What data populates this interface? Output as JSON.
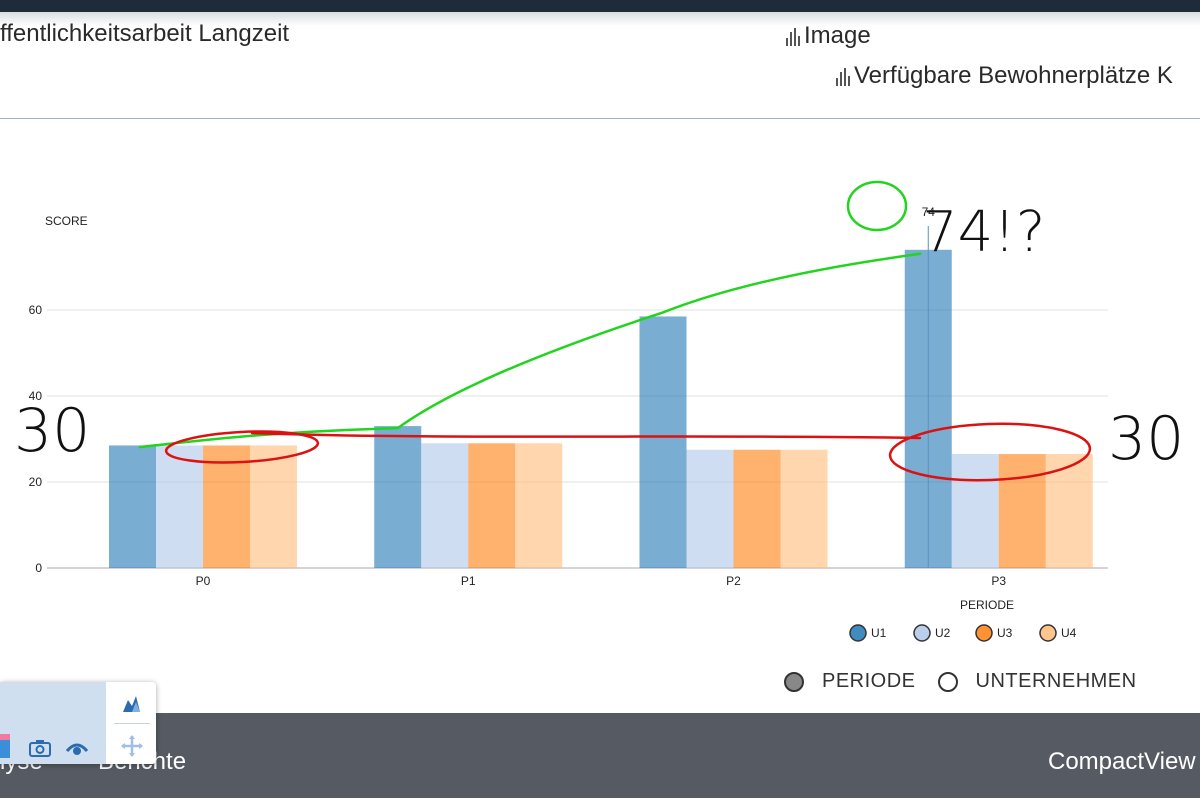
{
  "header": {
    "title": "ffentlichkeitsarbeit Langzeit",
    "links": [
      "Image",
      "Verfügbare Bewohnerplätze K"
    ]
  },
  "chart_data": {
    "type": "bar",
    "categories": [
      "P0",
      "P1",
      "P2",
      "P3"
    ],
    "series": [
      {
        "name": "U1",
        "color": "#1f77b4",
        "values": [
          28.5,
          33,
          58.5,
          74
        ]
      },
      {
        "name": "U2",
        "color": "#aec7e8",
        "values": [
          28.5,
          29,
          27.5,
          26.5
        ]
      },
      {
        "name": "U3",
        "color": "#ff7f0e",
        "values": [
          28.5,
          29,
          27.5,
          26.5
        ]
      },
      {
        "name": "U4",
        "color": "#ffbb78",
        "values": [
          28.5,
          29,
          27.5,
          26.5
        ]
      }
    ],
    "ylabel": "SCORE",
    "xlabel": "PERIODE",
    "yticks": [
      0,
      20,
      40,
      60
    ],
    "ylim": [
      0,
      80
    ],
    "grid": true,
    "legend": "bottom-right",
    "tooltip_value": "74"
  },
  "view_toggle": {
    "options": [
      "PERIODE",
      "UNTERNEHMEN"
    ],
    "selected": "PERIODE"
  },
  "annotations": {
    "left_note": "30",
    "right_note": "30",
    "peak_note": "74!?"
  },
  "footer": {
    "items": [
      "lyse",
      "Berichte",
      "CompactView"
    ]
  },
  "toolbox": {
    "icons": [
      "pink-tool-icon",
      "camera-icon",
      "eye-icon",
      "chart-mountain-icon",
      "move-icon"
    ]
  }
}
